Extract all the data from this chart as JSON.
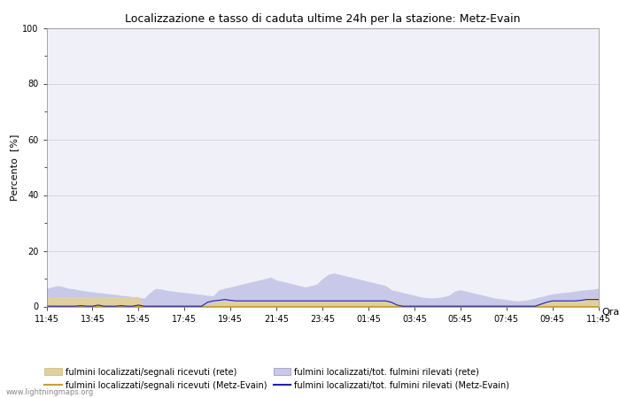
{
  "title": "Localizzazione e tasso di caduta ultime 24h per la stazione: Metz-Evain",
  "ylabel": "Percento  [%]",
  "xlabel": "Orario",
  "ylim": [
    0,
    100
  ],
  "yticks": [
    0,
    20,
    40,
    60,
    80,
    100
  ],
  "x_labels": [
    "11:45",
    "13:45",
    "15:45",
    "17:45",
    "19:45",
    "21:45",
    "23:45",
    "01:45",
    "03:45",
    "05:45",
    "07:45",
    "09:45",
    "11:45"
  ],
  "background_color": "#ffffff",
  "plot_bg_color": "#f0f0f8",
  "grid_color": "#cccccc",
  "watermark": "www.lightningmaps.org",
  "fill_rete_color": "#c8c8e8",
  "fill_rete_edge_color": "#9090c0",
  "fill_segnali_color": "#e0d0a0",
  "fill_segnali_edge_color": "#c8b870",
  "line_segnali_rete_color": "#c8a030",
  "line_tot_metz_color": "#2020b0",
  "legend_entries": [
    "fulmini localizzati/segnali ricevuti (rete)",
    "fulmini localizzati/segnali ricevuti (Metz-Evain)",
    "fulmini localizzati/tot. fulmini rilevati (rete)",
    "fulmini localizzati/tot. fulmini rilevati (Metz-Evain)"
  ],
  "n_points": 97,
  "rete_fill": [
    6.5,
    7.0,
    7.5,
    7.0,
    6.5,
    6.2,
    5.8,
    5.5,
    5.2,
    5.0,
    4.8,
    4.5,
    4.3,
    4.0,
    3.8,
    3.5,
    3.2,
    3.0,
    5.0,
    6.5,
    6.2,
    5.8,
    5.5,
    5.2,
    5.0,
    4.8,
    4.5,
    4.3,
    4.0,
    3.8,
    6.0,
    6.5,
    7.0,
    7.5,
    8.0,
    8.5,
    9.0,
    9.5,
    10.0,
    10.5,
    9.5,
    9.0,
    8.5,
    8.0,
    7.5,
    7.0,
    7.5,
    8.0,
    10.0,
    11.5,
    12.0,
    11.5,
    11.0,
    10.5,
    10.0,
    9.5,
    9.0,
    8.5,
    8.0,
    7.5,
    6.0,
    5.5,
    5.0,
    4.5,
    4.0,
    3.5,
    3.2,
    3.0,
    3.2,
    3.5,
    4.0,
    5.5,
    6.0,
    5.5,
    5.0,
    4.5,
    4.0,
    3.5,
    3.0,
    2.8,
    2.5,
    2.2,
    2.0,
    2.2,
    2.5,
    3.0,
    3.5,
    4.0,
    4.5,
    4.8,
    5.0,
    5.2,
    5.5,
    5.8,
    6.0,
    6.2,
    6.5
  ],
  "segnali_fill": [
    3.5,
    3.5,
    3.5,
    3.5,
    3.5,
    3.5,
    3.5,
    3.5,
    3.5,
    3.5,
    3.5,
    3.5,
    3.5,
    3.5,
    3.5,
    3.5,
    3.5,
    0.1,
    0.1,
    0.1,
    0.1,
    0.1,
    0.1,
    0.1,
    0.1,
    0.1,
    0.1,
    0.1,
    0.5,
    1.5,
    2.0,
    2.2,
    2.0,
    2.0,
    2.0,
    2.0,
    2.0,
    2.0,
    2.0,
    2.0,
    2.0,
    2.0,
    2.0,
    2.0,
    2.0,
    2.0,
    2.0,
    2.0,
    2.0,
    2.0,
    2.0,
    2.0,
    2.0,
    2.0,
    2.0,
    2.0,
    2.0,
    2.0,
    2.0,
    2.0,
    1.5,
    1.0,
    0.5,
    0.5,
    0.5,
    0.5,
    0.5,
    0.5,
    0.5,
    0.5,
    0.5,
    0.5,
    0.5,
    0.5,
    0.5,
    0.5,
    0.5,
    0.5,
    0.5,
    0.5,
    0.5,
    0.5,
    0.5,
    0.5,
    0.5,
    0.5,
    1.0,
    1.5,
    2.0,
    2.0,
    2.0,
    2.0,
    2.0,
    2.5,
    3.0,
    3.0,
    3.0
  ],
  "line_segnali_rete": [
    0.05,
    0.05,
    0.05,
    0.05,
    0.05,
    0.05,
    0.05,
    0.05,
    0.05,
    0.05,
    0.05,
    0.05,
    0.05,
    0.05,
    0.05,
    0.05,
    0.05,
    0.05,
    0.05,
    0.05,
    0.05,
    0.05,
    0.05,
    0.05,
    0.05,
    0.05,
    0.05,
    0.05,
    0.05,
    0.05,
    0.05,
    0.05,
    0.05,
    0.05,
    0.05,
    0.05,
    0.05,
    0.05,
    0.05,
    0.05,
    0.05,
    0.05,
    0.05,
    0.05,
    0.05,
    0.05,
    0.05,
    0.05,
    0.05,
    0.05,
    0.05,
    0.05,
    0.05,
    0.05,
    0.05,
    0.05,
    0.05,
    0.05,
    0.05,
    0.05,
    0.05,
    0.05,
    0.05,
    0.05,
    0.05,
    0.05,
    0.05,
    0.05,
    0.05,
    0.05,
    0.05,
    0.05,
    0.05,
    0.05,
    0.05,
    0.05,
    0.05,
    0.05,
    0.05,
    0.05,
    0.05,
    0.05,
    0.05,
    0.05,
    0.05,
    0.05,
    0.05,
    0.05,
    0.05,
    0.05,
    0.05,
    0.05,
    0.05,
    0.05,
    0.05,
    0.05,
    0.05
  ],
  "line_tot_metz": [
    0.1,
    0.1,
    0.1,
    0.1,
    0.1,
    0.1,
    0.3,
    0.1,
    0.1,
    0.5,
    0.1,
    0.1,
    0.1,
    0.3,
    0.1,
    0.1,
    0.5,
    0.1,
    0.1,
    0.1,
    0.1,
    0.1,
    0.1,
    0.1,
    0.1,
    0.1,
    0.1,
    0.1,
    1.5,
    2.0,
    2.2,
    2.5,
    2.2,
    2.0,
    2.0,
    2.0,
    2.0,
    2.0,
    2.0,
    2.0,
    2.0,
    2.0,
    2.0,
    2.0,
    2.0,
    2.0,
    2.0,
    2.0,
    2.0,
    2.0,
    2.0,
    2.0,
    2.0,
    2.0,
    2.0,
    2.0,
    2.0,
    2.0,
    2.0,
    2.0,
    1.5,
    0.5,
    0.1,
    0.1,
    0.1,
    0.1,
    0.1,
    0.1,
    0.1,
    0.1,
    0.1,
    0.1,
    0.1,
    0.1,
    0.1,
    0.1,
    0.1,
    0.1,
    0.1,
    0.1,
    0.1,
    0.1,
    0.1,
    0.1,
    0.1,
    0.1,
    0.8,
    1.5,
    2.0,
    2.0,
    2.0,
    2.0,
    2.0,
    2.2,
    2.5,
    2.5,
    2.5
  ]
}
